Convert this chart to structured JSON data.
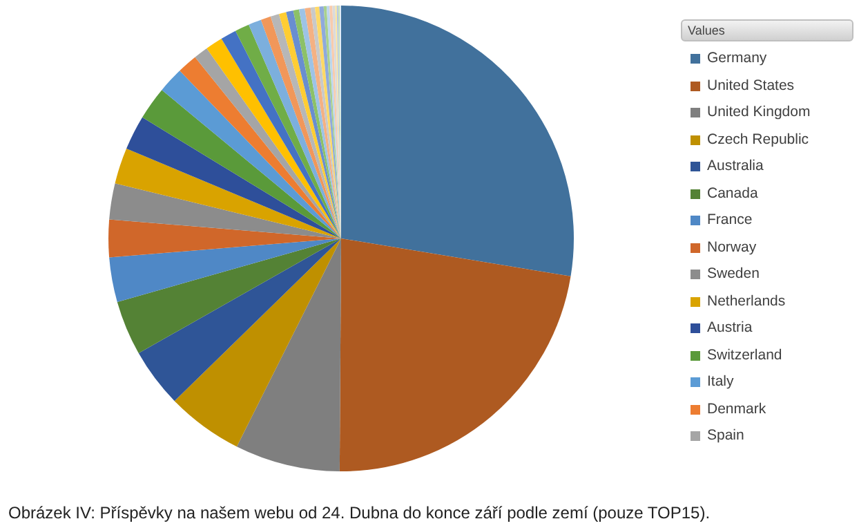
{
  "chart_data": {
    "type": "pie",
    "legend": "right",
    "legend_title": "Values",
    "annotations": [
      "Obrázek IV: Příspěvky na našem webu od 24. Dubna do konce září podle zemí (pouze TOP15)."
    ],
    "categories": [
      "Germany",
      "United States",
      "United Kingdom",
      "Czech Republic",
      "Australia",
      "Canada",
      "France",
      "Norway",
      "Sweden",
      "Netherlands",
      "Austria",
      "Switzerland",
      "Italy",
      "Denmark",
      "Spain",
      null,
      null,
      null,
      null,
      null,
      null,
      null,
      null,
      null,
      null,
      null,
      null,
      null,
      null,
      null,
      null,
      null,
      null,
      null,
      null,
      null,
      null
    ],
    "values": [
      27.6,
      22.5,
      7.3,
      5.3,
      4.1,
      3.8,
      3.1,
      2.6,
      2.5,
      2.5,
      2.4,
      2.3,
      1.8,
      1.4,
      1.0,
      1.2,
      1.1,
      1.0,
      0.9,
      0.7,
      0.6,
      0.5,
      0.5,
      0.4,
      0.4,
      0.4,
      0.3,
      0.3,
      0.3,
      0.2,
      0.2,
      0.2,
      0.2,
      0.1,
      0.1,
      0.1,
      0.1
    ],
    "colors": [
      "#41719c",
      "#ae5a21",
      "#7f7f7f",
      "#bf9000",
      "#2f5597",
      "#548235",
      "#4f88c6",
      "#d0672a",
      "#8c8c8c",
      "#d9a300",
      "#2e4f9a",
      "#5a9a3a",
      "#5b9bd5",
      "#ed7d31",
      "#a5a5a5",
      "#ffc000",
      "#4472c4",
      "#70ad47",
      "#7cafdd",
      "#f1975a",
      "#b7b7b7",
      "#ffcd33",
      "#698ed0",
      "#8cc168",
      "#9dc3e6",
      "#f4b183",
      "#c9c9c9",
      "#ffd966",
      "#8faadc",
      "#a9d18e",
      "#bdd7ee",
      "#f8cbad",
      "#dbdbdb",
      "#ffe699",
      "#b4c7e7",
      "#c5e0b4",
      "#deebf7"
    ]
  }
}
